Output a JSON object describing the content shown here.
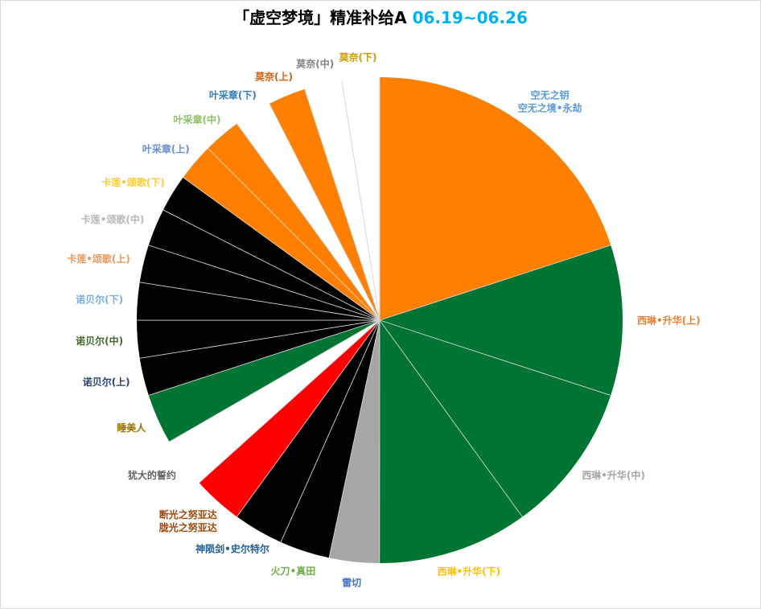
{
  "colors": {
    "title": "#000000",
    "title_date": "#00B0F0"
  },
  "chart_data": {
    "type": "pie",
    "title": "「虚空梦境」精准补给A",
    "title_date": "06.19~06.26",
    "legend": "none",
    "categories": [
      [
        "空无之钥",
        "空无之境•永劫"
      ],
      [
        "西琳•升华(上)"
      ],
      [
        "西琳•升华(中)"
      ],
      [
        "西琳•升华(下)"
      ],
      [
        "雷切"
      ],
      [
        "火刀•真田"
      ],
      [
        "神陨剑•史尔特尔"
      ],
      [
        "断光之努亚达",
        "胧光之努亚达"
      ],
      [
        "犹大的誓约"
      ],
      [
        "睡美人"
      ],
      [
        "诺贝尔(上)"
      ],
      [
        "诺贝尔(中)"
      ],
      [
        "诺贝尔(下)"
      ],
      [
        "卡莲•颂歌(上)"
      ],
      [
        "卡莲•颂歌(中)"
      ],
      [
        "卡莲•颂歌(下)"
      ],
      [
        "叶采章(上)"
      ],
      [
        "叶采章(中)"
      ],
      [
        "叶采章(下)"
      ],
      [
        "莫奈(上)"
      ],
      [
        "莫奈(中)"
      ],
      [
        "莫奈(下)"
      ]
    ],
    "values": [
      20,
      10,
      10,
      10,
      3.33,
      3.33,
      3.33,
      3.33,
      3.33,
      3.33,
      2.5,
      2.5,
      2.5,
      2.5,
      2.5,
      2.5,
      2.5,
      2.5,
      2.5,
      2.5,
      2.5,
      2.5
    ],
    "slice_colors": [
      "#FF7F00",
      "#007533",
      "#007533",
      "#007533",
      "#A6A6A6",
      "#000000",
      "#000000",
      "#FF0000",
      "#FFFFFF",
      "#007533",
      "#000000",
      "#000000",
      "#000000",
      "#000000",
      "#000000",
      "#000000",
      "#FF7F00",
      "#FF7F00",
      "#FFFFFF",
      "#FF7F00",
      "#FFFFFF",
      "#FFFFFF"
    ],
    "label_colors": [
      "#5B9BD5",
      "#ED7D31",
      "#A5A5A5",
      "#FFC000",
      "#4472C4",
      "#70AD47",
      "#255E91",
      "#9E480E",
      "#636363",
      "#997300",
      "#264478",
      "#43682B",
      "#7CAFDD",
      "#F1975A",
      "#B7B7B7",
      "#FFCD33",
      "#698ED0",
      "#8CC168",
      "#327DC2",
      "#D26012",
      "#848484",
      "#CC9A00"
    ]
  }
}
